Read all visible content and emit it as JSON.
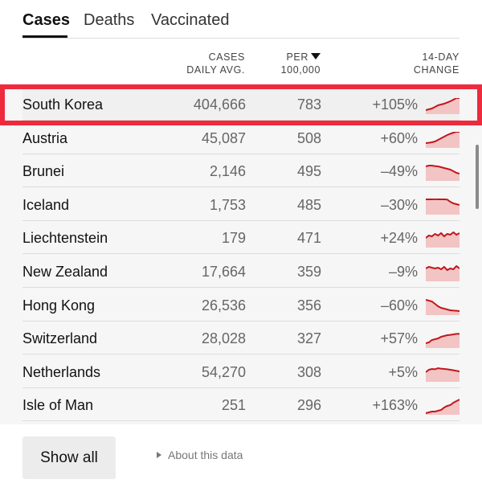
{
  "tabs": [
    {
      "label": "Cases",
      "active": true
    },
    {
      "label": "Deaths",
      "active": false
    },
    {
      "label": "Vaccinated",
      "active": false
    }
  ],
  "columns": {
    "cases_line1": "CASES",
    "cases_line2": "DAILY AVG.",
    "per_line1": "PER",
    "per_line2": "100,000",
    "change_line1": "14-DAY",
    "change_line2": "CHANGE"
  },
  "rows": [
    {
      "country": "South Korea",
      "cases": "404,666",
      "per": "783",
      "change": "+105%",
      "trend": [
        0.25,
        0.3,
        0.35,
        0.45,
        0.55,
        0.6,
        0.65,
        0.72,
        0.8,
        0.9,
        1.0,
        1.0
      ]
    },
    {
      "country": "Austria",
      "cases": "45,087",
      "per": "508",
      "change": "+60%",
      "trend": [
        0.3,
        0.32,
        0.35,
        0.4,
        0.5,
        0.6,
        0.7,
        0.8,
        0.88,
        0.95,
        1.0,
        1.0
      ]
    },
    {
      "country": "Brunei",
      "cases": "2,146",
      "per": "495",
      "change": "–49%",
      "trend": [
        0.9,
        0.95,
        0.95,
        0.92,
        0.9,
        0.85,
        0.8,
        0.75,
        0.7,
        0.6,
        0.5,
        0.45
      ]
    },
    {
      "country": "Iceland",
      "cases": "1,753",
      "per": "485",
      "change": "–30%",
      "trend": [
        0.95,
        0.95,
        0.95,
        0.96,
        0.95,
        0.95,
        0.95,
        0.94,
        0.8,
        0.7,
        0.65,
        0.6
      ]
    },
    {
      "country": "Liechtenstein",
      "cases": "179",
      "per": "471",
      "change": "+24%",
      "trend": [
        0.6,
        0.75,
        0.7,
        0.85,
        0.75,
        0.9,
        0.7,
        0.85,
        0.8,
        0.95,
        0.8,
        0.9
      ]
    },
    {
      "country": "New Zealand",
      "cases": "17,664",
      "per": "359",
      "change": "–9%",
      "trend": [
        0.8,
        0.9,
        0.85,
        0.8,
        0.85,
        0.75,
        0.9,
        0.7,
        0.8,
        0.75,
        0.95,
        0.8
      ]
    },
    {
      "country": "Hong Kong",
      "cases": "26,536",
      "per": "356",
      "change": "–60%",
      "trend": [
        0.95,
        0.9,
        0.85,
        0.7,
        0.55,
        0.45,
        0.4,
        0.35,
        0.3,
        0.28,
        0.27,
        0.25
      ]
    },
    {
      "country": "Switzerland",
      "cases": "28,028",
      "per": "327",
      "change": "+57%",
      "trend": [
        0.3,
        0.35,
        0.5,
        0.55,
        0.6,
        0.7,
        0.75,
        0.8,
        0.82,
        0.85,
        0.88,
        0.88
      ]
    },
    {
      "country": "Netherlands",
      "cases": "54,270",
      "per": "308",
      "change": "+5%",
      "trend": [
        0.6,
        0.75,
        0.8,
        0.78,
        0.85,
        0.82,
        0.8,
        0.78,
        0.75,
        0.72,
        0.68,
        0.65
      ]
    },
    {
      "country": "Isle of Man",
      "cases": "251",
      "per": "296",
      "change": "+163%",
      "trend": [
        0.1,
        0.15,
        0.2,
        0.2,
        0.25,
        0.3,
        0.45,
        0.55,
        0.6,
        0.75,
        0.85,
        0.95
      ]
    }
  ],
  "buttons": {
    "show_all": "Show all",
    "about": "About this data"
  },
  "colors": {
    "trend_line": "#c0171e",
    "trend_fill": "#f3c4c4",
    "highlight_border": "#ee2a3d"
  }
}
